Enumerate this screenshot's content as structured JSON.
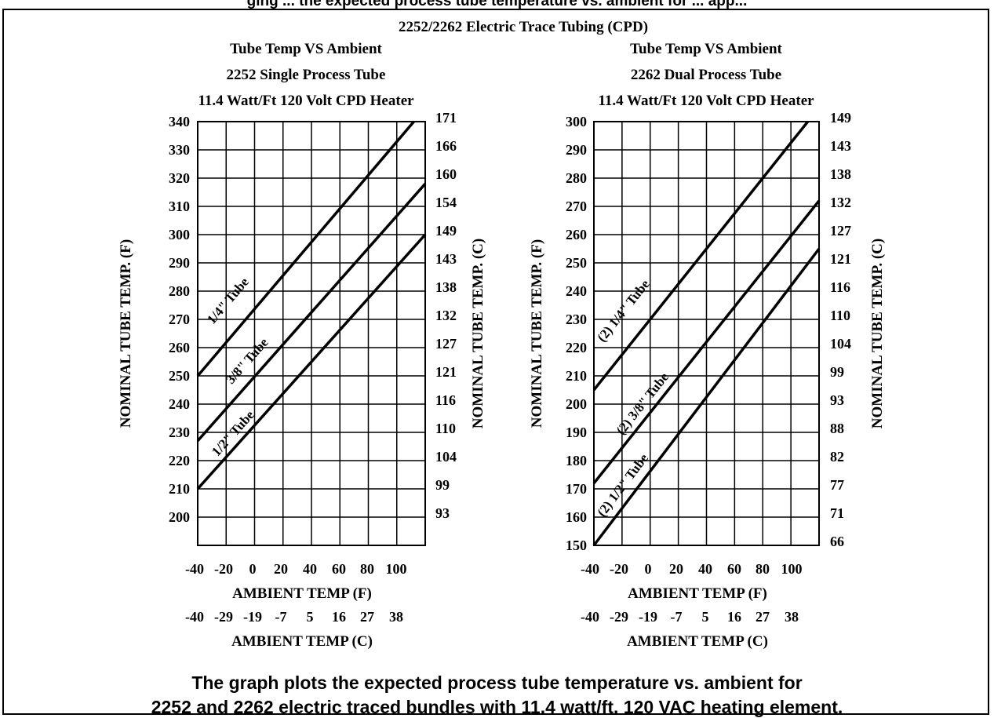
{
  "top_strip": "ging ... the expected process tube temperature vs. ambient for ... app...",
  "header_title": "2252/2262 Electric Trace Tubing (CPD)",
  "caption": {
    "line1": "The graph plots the expected process tube temperature vs. ambient for",
    "line2": "2252 and 2262 electric traced bundles with 11.4 watt/ft. 120 VAC heating element."
  },
  "chart_data": [
    {
      "type": "line",
      "title": [
        "Tube Temp VS Ambient",
        "2252 Single Process Tube",
        "11.4 Watt/Ft 120 Volt CPD Heater"
      ],
      "xlabel": "AMBIENT TEMP (F)",
      "xlabel_secondary": "AMBIENT TEMP (C)",
      "ylabel": "NOMINAL TUBE TEMP. (F)",
      "ylabel_right": "NOMINAL TUBE TEMP. (C)",
      "xlim": [
        -40,
        120
      ],
      "ylim": [
        190,
        340
      ],
      "grid": true,
      "x_ticks": [
        "-40",
        "-20",
        "0",
        "20",
        "40",
        "60",
        "80",
        "100"
      ],
      "x_ticks_c": [
        "-40",
        "-29",
        "-19",
        "-7",
        "5",
        "16",
        "27",
        "38"
      ],
      "y_ticks": [
        "200",
        "210",
        "220",
        "230",
        "240",
        "250",
        "260",
        "270",
        "280",
        "290",
        "300",
        "310",
        "320",
        "330",
        "340"
      ],
      "y_ticks_right": [
        "93",
        "99",
        "104",
        "110",
        "116",
        "121",
        "127",
        "132",
        "138",
        "143",
        "149",
        "154",
        "160",
        "166",
        "171"
      ],
      "series": [
        {
          "name": "1/4\" Tube",
          "x": [
            -40,
            112
          ],
          "y": [
            250,
            340
          ]
        },
        {
          "name": "3/8\" Tube",
          "x": [
            -40,
            120
          ],
          "y": [
            227,
            318
          ]
        },
        {
          "name": "1/2\" Tube",
          "x": [
            -40,
            120
          ],
          "y": [
            210,
            300
          ]
        }
      ]
    },
    {
      "type": "line",
      "title": [
        "Tube Temp VS Ambient",
        "2262 Dual Process Tube",
        "11.4 Watt/Ft 120 Volt CPD Heater"
      ],
      "xlabel": "AMBIENT TEMP (F)",
      "xlabel_secondary": "AMBIENT TEMP (C)",
      "ylabel": "NOMINAL TUBE TEMP. (F)",
      "ylabel_right": "NOMINAL TUBE TEMP. (C)",
      "xlim": [
        -40,
        120
      ],
      "ylim": [
        150,
        300
      ],
      "grid": true,
      "x_ticks": [
        "-40",
        "-20",
        "0",
        "20",
        "40",
        "60",
        "80",
        "100"
      ],
      "x_ticks_c": [
        "-40",
        "-29",
        "-19",
        "-7",
        "5",
        "16",
        "27",
        "38"
      ],
      "y_ticks": [
        "150",
        "160",
        "170",
        "180",
        "190",
        "200",
        "210",
        "220",
        "230",
        "240",
        "250",
        "260",
        "270",
        "280",
        "290",
        "300"
      ],
      "y_ticks_right": [
        "66",
        "71",
        "77",
        "82",
        "88",
        "93",
        "99",
        "104",
        "110",
        "116",
        "121",
        "127",
        "132",
        "138",
        "143",
        "149"
      ],
      "series": [
        {
          "name": "(2) 1/4\" Tube",
          "x": [
            -40,
            112
          ],
          "y": [
            205,
            300
          ]
        },
        {
          "name": "(2) 3/8\" Tube",
          "x": [
            -40,
            120
          ],
          "y": [
            172,
            272
          ]
        },
        {
          "name": "(2) 1/2\" Tube",
          "x": [
            -40,
            120
          ],
          "y": [
            150,
            255
          ]
        }
      ]
    }
  ]
}
